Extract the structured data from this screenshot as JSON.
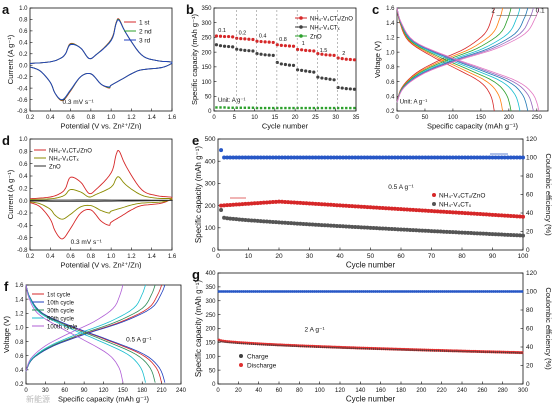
{
  "watermark": "新能源",
  "chart_data": [
    {
      "id": "a",
      "panel_label": "a",
      "type": "line",
      "xlabel": "Potential (V vs. Zn²⁺/Zn)",
      "ylabel": "Current (A g⁻¹)",
      "xlim": [
        0.2,
        1.6
      ],
      "ylim": [
        -0.8,
        1.0
      ],
      "xticks": [
        0.2,
        0.4,
        0.6,
        0.8,
        1.0,
        1.2,
        1.4,
        1.6
      ],
      "yticks": [
        -0.8,
        -0.6,
        -0.4,
        -0.2,
        0.0,
        0.2,
        0.4,
        0.6,
        0.8,
        1.0
      ],
      "annotation": "0.3 mV s⁻¹",
      "legend": "top-right",
      "series": [
        {
          "name": "1 st",
          "color": "#d62728",
          "x": [
            0.2,
            0.4,
            0.5,
            0.55,
            0.6,
            0.7,
            0.78,
            0.85,
            1.0,
            1.05,
            1.08,
            1.15,
            1.3,
            1.45,
            1.6,
            1.5,
            1.3,
            1.2,
            1.1,
            1.0,
            0.98,
            0.9,
            0.8,
            0.7,
            0.6,
            0.52,
            0.45,
            0.4,
            0.3,
            0.2
          ],
          "y": [
            0.03,
            0.06,
            0.12,
            0.2,
            0.38,
            0.3,
            0.12,
            0.18,
            0.45,
            0.75,
            0.8,
            0.55,
            0.18,
            0.08,
            0.05,
            -0.04,
            -0.08,
            -0.15,
            -0.25,
            -0.35,
            -0.4,
            -0.33,
            -0.15,
            -0.2,
            -0.45,
            -0.62,
            -0.5,
            -0.3,
            -0.1,
            -0.03
          ]
        },
        {
          "name": "2 nd",
          "color": "#2ca02c",
          "x": [
            0.2,
            0.4,
            0.5,
            0.55,
            0.6,
            0.7,
            0.78,
            0.85,
            1.0,
            1.05,
            1.08,
            1.15,
            1.3,
            1.45,
            1.6,
            1.5,
            1.3,
            1.2,
            1.1,
            1.0,
            0.98,
            0.9,
            0.8,
            0.7,
            0.6,
            0.52,
            0.45,
            0.4,
            0.3,
            0.2
          ],
          "y": [
            0.03,
            0.06,
            0.12,
            0.2,
            0.37,
            0.3,
            0.12,
            0.18,
            0.44,
            0.74,
            0.79,
            0.55,
            0.18,
            0.08,
            0.05,
            -0.04,
            -0.08,
            -0.15,
            -0.25,
            -0.35,
            -0.39,
            -0.33,
            -0.15,
            -0.2,
            -0.44,
            -0.61,
            -0.5,
            -0.3,
            -0.1,
            -0.03
          ]
        },
        {
          "name": "3 rd",
          "color": "#1f3fbf",
          "x": [
            0.2,
            0.4,
            0.5,
            0.55,
            0.6,
            0.7,
            0.78,
            0.85,
            1.0,
            1.05,
            1.08,
            1.15,
            1.3,
            1.45,
            1.6,
            1.5,
            1.3,
            1.2,
            1.1,
            1.0,
            0.98,
            0.9,
            0.8,
            0.7,
            0.6,
            0.52,
            0.45,
            0.4,
            0.3,
            0.2
          ],
          "y": [
            0.03,
            0.06,
            0.12,
            0.2,
            0.36,
            0.3,
            0.12,
            0.18,
            0.43,
            0.73,
            0.78,
            0.55,
            0.18,
            0.08,
            0.05,
            -0.04,
            -0.08,
            -0.15,
            -0.25,
            -0.35,
            -0.38,
            -0.33,
            -0.15,
            -0.2,
            -0.43,
            -0.6,
            -0.5,
            -0.3,
            -0.1,
            -0.03
          ]
        }
      ]
    },
    {
      "id": "b",
      "panel_label": "b",
      "type": "scatter",
      "xlabel": "Cycle number",
      "ylabel": "Specific capacity (mAh g⁻¹)",
      "xlim": [
        0,
        35
      ],
      "ylim": [
        0,
        350
      ],
      "xticks": [
        0,
        5,
        10,
        15,
        20,
        25,
        30,
        35
      ],
      "yticks": [
        0,
        50,
        100,
        150,
        200,
        250,
        300,
        350
      ],
      "unit_note": "Unit: A g⁻¹",
      "rate_labels": [
        "0.1",
        "0.2",
        "0.4",
        "0.8",
        "1",
        "1.5",
        "2"
      ],
      "legend": "top-right",
      "series": [
        {
          "name": "NH₄-V₄CTₓ/ZnO",
          "color": "#d62728",
          "y": [
            255,
            254,
            253,
            253,
            252,
            247,
            246,
            245,
            244,
            243,
            237,
            236,
            235,
            234,
            233,
            225,
            223,
            222,
            221,
            220,
            209,
            208,
            206,
            205,
            204,
            195,
            193,
            191,
            190,
            189,
            180,
            178,
            176,
            175,
            174
          ]
        },
        {
          "name": "NH₄-V₄CTₓ",
          "color": "#404040",
          "y": [
            225,
            222,
            220,
            219,
            218,
            210,
            208,
            206,
            205,
            204,
            195,
            193,
            191,
            190,
            189,
            165,
            160,
            158,
            156,
            155,
            140,
            138,
            136,
            134,
            132,
            115,
            112,
            110,
            108,
            106,
            80,
            78,
            76,
            75,
            74
          ]
        },
        {
          "name": "ZnO",
          "color": "#2ca02c",
          "y": [
            12,
            12,
            12,
            11,
            11,
            11,
            11,
            11,
            11,
            11,
            10,
            10,
            10,
            10,
            10,
            10,
            10,
            10,
            10,
            10,
            10,
            10,
            10,
            10,
            10,
            10,
            10,
            10,
            10,
            10,
            10,
            10,
            10,
            10,
            10
          ]
        }
      ]
    },
    {
      "id": "c",
      "panel_label": "c",
      "type": "line",
      "xlabel": "Specific capacity (mAh g⁻¹)",
      "ylabel": "Voltage (V)",
      "xlim": [
        0,
        270
      ],
      "ylim": [
        0.2,
        1.6
      ],
      "xticks": [
        0,
        50,
        100,
        150,
        200,
        250
      ],
      "yticks": [
        0.2,
        0.4,
        0.6,
        0.8,
        1.0,
        1.2,
        1.4,
        1.6
      ],
      "unit_note": "Unit: A g⁻¹",
      "curve_labels": [
        "2",
        "0.1"
      ],
      "capacities": [
        174,
        189,
        204,
        220,
        234,
        244,
        254
      ],
      "colors": [
        "#d62728",
        "#ff7f0e",
        "#2ca02c",
        "#17becf",
        "#1f77b4",
        "#9467bd",
        "#e377c2"
      ]
    },
    {
      "id": "d",
      "panel_label": "d",
      "type": "line",
      "xlabel": "Potential (V vs. Zn²⁺/Zn)",
      "ylabel": "Current (A g⁻¹)",
      "xlim": [
        0.2,
        1.6
      ],
      "ylim": [
        -0.8,
        1.0
      ],
      "xticks": [
        0.2,
        0.4,
        0.6,
        0.8,
        1.0,
        1.2,
        1.4,
        1.6
      ],
      "yticks": [
        -0.8,
        -0.6,
        -0.4,
        -0.2,
        0.0,
        0.2,
        0.4,
        0.6,
        0.8,
        1.0
      ],
      "annotation": "0.3 mV s⁻¹",
      "legend": "top-left",
      "series": [
        {
          "name": "NH₄-V₄CTₓ/ZnO",
          "color": "#d62728",
          "x": [
            0.2,
            0.4,
            0.5,
            0.55,
            0.6,
            0.7,
            0.78,
            0.85,
            1.0,
            1.05,
            1.08,
            1.15,
            1.3,
            1.45,
            1.6,
            1.5,
            1.3,
            1.2,
            1.1,
            1.0,
            0.98,
            0.9,
            0.8,
            0.7,
            0.6,
            0.52,
            0.45,
            0.4,
            0.3,
            0.2
          ],
          "y": [
            0.03,
            0.06,
            0.12,
            0.2,
            0.38,
            0.3,
            0.12,
            0.18,
            0.45,
            0.75,
            0.8,
            0.55,
            0.18,
            0.08,
            0.05,
            -0.04,
            -0.08,
            -0.15,
            -0.25,
            -0.35,
            -0.4,
            -0.33,
            -0.15,
            -0.2,
            -0.45,
            -0.62,
            -0.5,
            -0.3,
            -0.1,
            -0.03
          ]
        },
        {
          "name": "NH₄-V₄CTₓ",
          "color": "#8b8b00",
          "x": [
            0.2,
            0.4,
            0.5,
            0.55,
            0.6,
            0.7,
            0.78,
            0.85,
            1.0,
            1.05,
            1.08,
            1.15,
            1.3,
            1.45,
            1.6,
            1.5,
            1.3,
            1.2,
            1.1,
            1.0,
            0.98,
            0.9,
            0.8,
            0.7,
            0.6,
            0.52,
            0.45,
            0.4,
            0.3,
            0.2
          ],
          "y": [
            0.02,
            0.03,
            0.06,
            0.1,
            0.18,
            0.14,
            0.06,
            0.1,
            0.22,
            0.36,
            0.38,
            0.25,
            0.09,
            0.04,
            0.03,
            -0.02,
            -0.04,
            -0.07,
            -0.12,
            -0.17,
            -0.2,
            -0.16,
            -0.08,
            -0.1,
            -0.22,
            -0.3,
            -0.24,
            -0.14,
            -0.05,
            -0.02
          ]
        },
        {
          "name": "ZnO",
          "color": "#2c2c2c",
          "x": [
            0.2,
            0.6,
            1.0,
            1.4,
            1.6,
            1.2,
            0.8,
            0.4,
            0.2
          ],
          "y": [
            0.005,
            0.01,
            0.01,
            0.008,
            0.005,
            -0.005,
            -0.01,
            -0.01,
            -0.005
          ]
        }
      ]
    },
    {
      "id": "e",
      "panel_label": "e",
      "type": "scatter",
      "xlabel": "Cycle number",
      "ylabel": "Specific capacity (mAh g⁻¹)",
      "y2label": "Coulombic efficiency (%)",
      "xlim": [
        0,
        100
      ],
      "ylim": [
        0,
        500
      ],
      "y2lim": [
        0,
        120
      ],
      "xticks": [
        0,
        10,
        20,
        30,
        40,
        50,
        60,
        70,
        80,
        90,
        100
      ],
      "yticks": [
        0,
        100,
        200,
        300,
        400,
        500
      ],
      "y2ticks": [
        0,
        20,
        40,
        60,
        80,
        100,
        120
      ],
      "annotation": "0.5 A g⁻¹",
      "legend": "right",
      "series": [
        {
          "name": "NH₄-V₄CTₓ/ZnO",
          "color": "#d62728",
          "x_range": [
            1,
            100
          ],
          "y_start": 200,
          "y_peak": 218,
          "y_peak_x": 20,
          "y_end": 150
        },
        {
          "name": "NH₄-V₄CTₓ",
          "color": "#555555",
          "x_range": [
            1,
            100
          ],
          "y_start": 180,
          "y_second": 145,
          "y_end": 65
        },
        {
          "name": "Coulombic efficiency",
          "color": "#2757c6",
          "axis": "y2",
          "x_range": [
            1,
            100
          ],
          "y_start": 108,
          "y_steady": 100
        }
      ]
    },
    {
      "id": "f",
      "panel_label": "f",
      "type": "line",
      "xlabel": "Specific capacity (mAh g⁻¹)",
      "ylabel": "Voltage (V)",
      "xlim": [
        0,
        240
      ],
      "ylim": [
        0.2,
        1.6
      ],
      "xticks": [
        0,
        30,
        60,
        90,
        120,
        150,
        180,
        210,
        240
      ],
      "yticks": [
        0.2,
        0.4,
        0.6,
        0.8,
        1.0,
        1.2,
        1.4,
        1.6
      ],
      "annotation": "0.5 A g⁻¹",
      "legend": "top-left",
      "series": [
        {
          "name": "1st cycle",
          "color": "#d62728",
          "capacity": 210
        },
        {
          "name": "10th cycle",
          "color": "#1f3fbf",
          "capacity": 215
        },
        {
          "name": "30th cycle",
          "color": "#2e8b57",
          "capacity": 200
        },
        {
          "name": "50th cycle",
          "color": "#17becf",
          "capacity": 185
        },
        {
          "name": "100th cycle",
          "color": "#b05fd6",
          "capacity": 150
        }
      ]
    },
    {
      "id": "g",
      "panel_label": "g",
      "type": "scatter",
      "xlabel": "Cycle number",
      "ylabel": "Specific capacity (mAh g⁻¹)",
      "y2label": "Coulombic efficiency (%)",
      "xlim": [
        0,
        300
      ],
      "ylim": [
        0,
        400
      ],
      "y2lim": [
        0,
        120
      ],
      "xticks": [
        0,
        20,
        40,
        60,
        80,
        100,
        120,
        140,
        160,
        180,
        200,
        220,
        240,
        260,
        280,
        300
      ],
      "yticks": [
        0,
        50,
        100,
        150,
        200,
        250,
        300,
        350,
        400
      ],
      "y2ticks": [
        0,
        20,
        40,
        60,
        80,
        100,
        120
      ],
      "annotation": "2 A g⁻¹",
      "legend": "bottom-left",
      "series": [
        {
          "name": "Charge",
          "color": "#404040",
          "x_range": [
            1,
            300
          ],
          "y_start": 155,
          "y_end": 112
        },
        {
          "name": "Discharge",
          "color": "#e03030",
          "x_range": [
            1,
            300
          ],
          "y_start": 158,
          "y_end": 113
        },
        {
          "name": "Coulombic efficiency",
          "color": "#2757c6",
          "axis": "y2",
          "x_range": [
            1,
            300
          ],
          "y_steady": 100
        }
      ]
    }
  ]
}
